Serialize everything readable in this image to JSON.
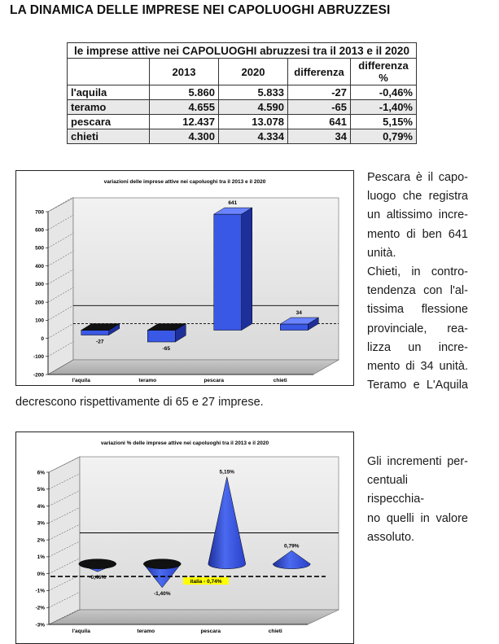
{
  "page_title": "LA DINAMICA DELLE IMPRESE NEI CAPOLUOGHI ABRUZZESI",
  "table": {
    "caption": "le imprese attive nei CAPOLUOGHI abruzzesi tra il 2013 e il 2020",
    "headers": [
      "",
      "2013",
      "2020",
      "differenza",
      "differenza %"
    ],
    "rows": [
      [
        "l'aquila",
        "5.860",
        "5.833",
        "-27",
        "-0,46%"
      ],
      [
        "teramo",
        "4.655",
        "4.590",
        "-65",
        "-1,40%"
      ],
      [
        "pescara",
        "12.437",
        "13.078",
        "641",
        "5,15%"
      ],
      [
        "chieti",
        "4.300",
        "4.334",
        "34",
        "0,79%"
      ]
    ]
  },
  "text1_lines": [
    "Pescara è il capo-",
    "luogo che registra",
    "un altissimo incre-",
    "mento di ben 641",
    "unità.",
    "Chieti, in contro-",
    "tendenza con l'al-",
    "tissima flessione",
    "provinciale, rea-",
    "lizza un incre-",
    "mento di 34 unità.",
    "Teramo e L'Aquila"
  ],
  "text1_tail": "decrescono rispettivamente di 65 e 27 imprese.",
  "text2_lines": [
    "Gli incrementi per-",
    "centuali rispecchia-",
    "no quelli in valore",
    "assoluto."
  ],
  "colors": {
    "bar_blue": "#3a58e6",
    "bar_dark": "#1e2f9a",
    "italia_label": "#ffff00"
  },
  "chart_data": [
    {
      "type": "bar",
      "title": "variazioni delle imprese attive nei capoluoghi tra il 2013 e il 2020",
      "categories": [
        "l'aquila",
        "teramo",
        "pescara",
        "chieti"
      ],
      "values": [
        -27,
        -65,
        641,
        34
      ],
      "data_labels": [
        "-27",
        "-65",
        "641",
        "34"
      ],
      "yticks": [
        -200,
        -100,
        0,
        100,
        200,
        300,
        400,
        500,
        600,
        700
      ],
      "ylim": [
        -200,
        700
      ],
      "reference_line": 100
    },
    {
      "type": "bar",
      "title": "variazioni % delle imprese attive nei capoluoghi tra il 2013 e il 2020",
      "categories": [
        "l'aquila",
        "teramo",
        "pescara",
        "chieti"
      ],
      "values": [
        -0.46,
        -1.4,
        5.15,
        0.79
      ],
      "data_labels": [
        "-0,46%",
        "-1,40%",
        "5,15%",
        "0,79%"
      ],
      "yticks": [
        "-3%",
        "-2%",
        "-1%",
        "0%",
        "1%",
        "2%",
        "3%",
        "4%",
        "5%",
        "6%"
      ],
      "ylim": [
        -3,
        6
      ],
      "reference_line": 1.5,
      "italia_value": -0.74,
      "italia_label": "italia - 0,74%"
    }
  ]
}
